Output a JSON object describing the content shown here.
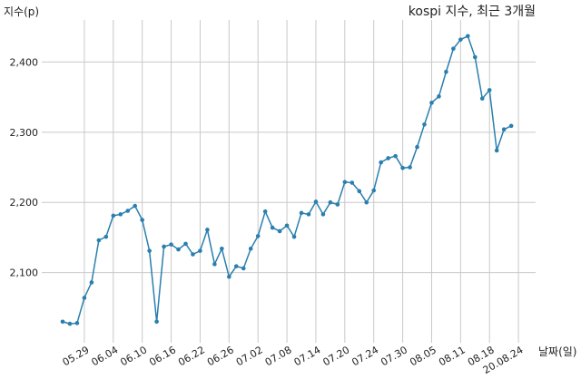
{
  "chart_data": {
    "type": "line",
    "title": "kospi 지수, 최근 3개월",
    "ylabel": "지수(p)",
    "xlabel": "날짜(일)",
    "grid": true,
    "ylim": [
      2000,
      2460
    ],
    "ytick_values": [
      2100,
      2200,
      2300,
      2400
    ],
    "ytick_labels": [
      "2,100",
      "2,200",
      "2,300",
      "2,400"
    ],
    "xtick_labels": [
      "05.29",
      "06.04",
      "06.10",
      "06.16",
      "06.22",
      "06.26",
      "07.02",
      "07.08",
      "07.14",
      "07.20",
      "07.24",
      "07.30",
      "08.05",
      "08.11",
      "08.18",
      "20.08.24"
    ],
    "xtick_indices": [
      3,
      7,
      11,
      15,
      19,
      23,
      27,
      31,
      35,
      39,
      43,
      47,
      51,
      55,
      59,
      63
    ],
    "series": [
      {
        "color": "#2a7fae",
        "values": [
          2030,
          2027,
          2028,
          2064,
          2086,
          2146,
          2151,
          2181,
          2183,
          2188,
          2195,
          2175,
          2131,
          2030,
          2137,
          2140,
          2133,
          2141,
          2126,
          2131,
          2161,
          2112,
          2134,
          2094,
          2109,
          2106,
          2134,
          2152,
          2187,
          2164,
          2159,
          2167,
          2151,
          2185,
          2183,
          2201,
          2183,
          2200,
          2197,
          2229,
          2228,
          2216,
          2200,
          2217,
          2257,
          2263,
          2266,
          2249,
          2250,
          2279,
          2311,
          2342,
          2351,
          2386,
          2419,
          2432,
          2437,
          2407,
          2348,
          2360,
          2274,
          2304,
          2309
        ]
      }
    ]
  }
}
